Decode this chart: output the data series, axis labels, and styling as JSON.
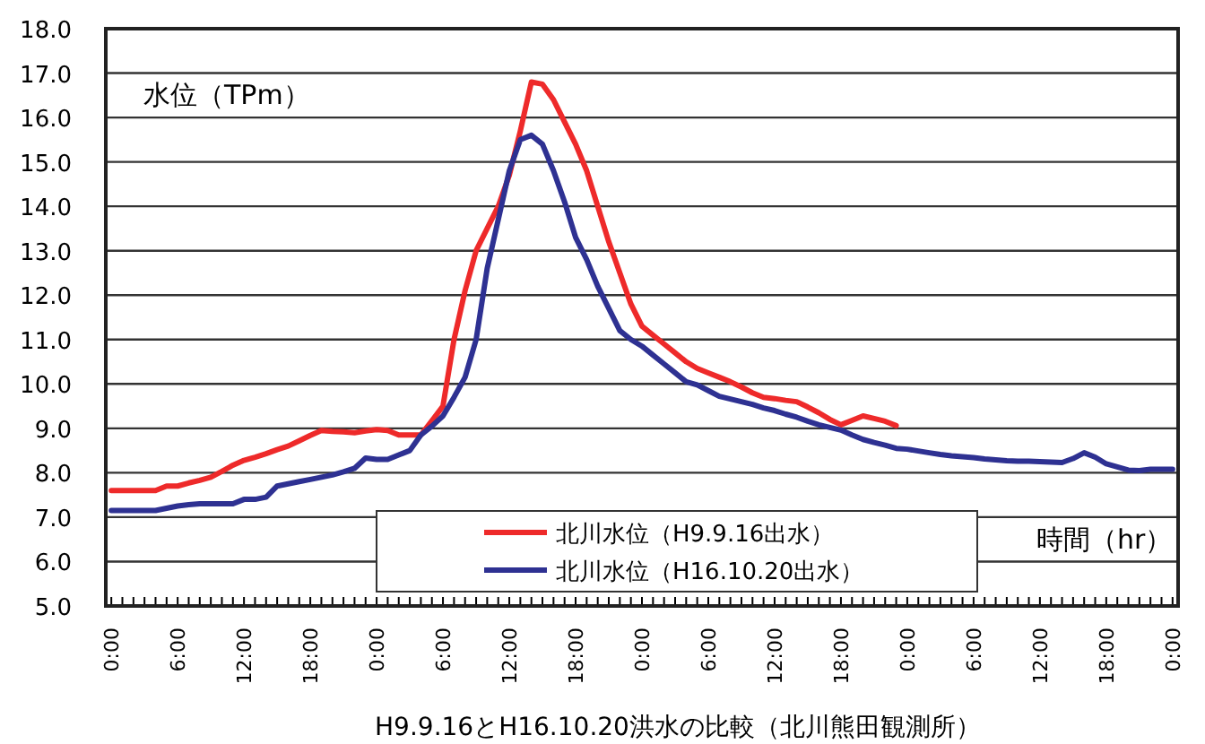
{
  "chart_data": {
    "type": "line",
    "title": "H9.9.16とH16.10.20洪水の比較（北川熊田観測所）",
    "ylabel": "水位（TPm）",
    "xlabel": "時間（hr）",
    "ylim": [
      5,
      18
    ],
    "yticks": [
      {
        "value": 5,
        "label": "5.0"
      },
      {
        "value": 6,
        "label": "6.0"
      },
      {
        "value": 7,
        "label": "7.0"
      },
      {
        "value": 8,
        "label": "8.0"
      },
      {
        "value": 9,
        "label": "9.0"
      },
      {
        "value": 10,
        "label": "10.0"
      },
      {
        "value": 11,
        "label": "11.0"
      },
      {
        "value": 12,
        "label": "12.0"
      },
      {
        "value": 13,
        "label": "13.0"
      },
      {
        "value": 14,
        "label": "14.0"
      },
      {
        "value": 15,
        "label": "15.0"
      },
      {
        "value": 16,
        "label": "16.0"
      },
      {
        "value": 17,
        "label": "17.0"
      },
      {
        "value": 18,
        "label": "18.0"
      }
    ],
    "categories": [
      "0:00",
      null,
      null,
      null,
      null,
      null,
      "6:00",
      null,
      null,
      null,
      null,
      null,
      "12:00",
      null,
      null,
      null,
      null,
      null,
      "18:00",
      null,
      null,
      null,
      null,
      null,
      "0:00",
      null,
      null,
      null,
      null,
      null,
      "6:00",
      null,
      null,
      null,
      null,
      null,
      "12:00",
      null,
      null,
      null,
      null,
      null,
      "18:00",
      null,
      null,
      null,
      null,
      null,
      "0:00",
      null,
      null,
      null,
      null,
      null,
      "6:00",
      null,
      null,
      null,
      null,
      null,
      "12:00",
      null,
      null,
      null,
      null,
      null,
      "18:00",
      null,
      null,
      null,
      null,
      null,
      "0:00",
      null,
      null,
      null,
      null,
      null,
      "6:00",
      null,
      null,
      null,
      null,
      null,
      "12:00",
      null,
      null,
      null,
      null,
      null,
      "18:00",
      null,
      null,
      null,
      null,
      null,
      "0:00"
    ],
    "grid": "y",
    "legend": "bottom",
    "marker": "none",
    "line_style": "solid",
    "series": [
      {
        "name": "北川水位（H9.9.16出水）",
        "color": "#ee2a2a",
        "values": [
          7.6,
          7.6,
          7.6,
          7.6,
          7.6,
          7.7,
          7.7,
          7.77,
          7.83,
          7.9,
          8.03,
          8.17,
          8.28,
          8.35,
          8.43,
          8.52,
          8.6,
          8.72,
          8.84,
          8.95,
          8.93,
          8.92,
          8.9,
          8.94,
          8.97,
          8.95,
          8.85,
          8.85,
          8.85,
          9.17,
          9.5,
          11.0,
          12.1,
          13.0,
          13.5,
          14.0,
          14.7,
          15.7,
          16.8,
          16.75,
          16.4,
          15.9,
          15.4,
          14.8,
          14.0,
          13.2,
          12.5,
          11.8,
          11.3,
          11.1,
          10.9,
          10.7,
          10.5,
          10.35,
          10.25,
          10.15,
          10.05,
          9.93,
          9.8,
          9.7,
          9.67,
          9.63,
          9.6,
          9.48,
          9.35,
          9.2,
          9.08,
          9.18,
          9.28,
          9.22,
          9.16,
          9.06,
          null,
          null,
          null,
          null,
          null,
          null,
          null,
          null,
          null,
          null,
          null,
          null,
          null,
          null,
          null,
          null,
          null,
          null,
          null,
          null,
          null,
          null,
          null,
          null,
          null
        ]
      },
      {
        "name": "北川水位（H16.10.20出水）",
        "color": "#2e3192",
        "values": [
          7.15,
          7.15,
          7.15,
          7.15,
          7.15,
          7.2,
          7.25,
          7.28,
          7.3,
          7.3,
          7.3,
          7.3,
          7.4,
          7.4,
          7.45,
          7.7,
          7.75,
          7.8,
          7.85,
          7.9,
          7.95,
          8.02,
          8.1,
          8.33,
          8.3,
          8.3,
          8.4,
          8.5,
          8.85,
          9.05,
          9.28,
          9.7,
          10.15,
          11.0,
          12.6,
          13.7,
          14.8,
          15.5,
          15.6,
          15.4,
          14.8,
          14.1,
          13.3,
          12.8,
          12.2,
          11.7,
          11.2,
          11.0,
          10.85,
          10.65,
          10.45,
          10.25,
          10.05,
          9.98,
          9.85,
          9.72,
          9.66,
          9.6,
          9.54,
          9.46,
          9.4,
          9.32,
          9.25,
          9.16,
          9.08,
          9.02,
          8.96,
          8.85,
          8.75,
          8.68,
          8.62,
          8.55,
          8.53,
          8.49,
          8.45,
          8.41,
          8.38,
          8.36,
          8.34,
          8.31,
          8.29,
          8.27,
          8.26,
          8.26,
          8.25,
          8.24,
          8.23,
          8.32,
          8.45,
          8.35,
          8.2,
          8.13,
          8.06,
          8.05,
          8.08,
          8.08,
          8.08
        ]
      }
    ]
  }
}
